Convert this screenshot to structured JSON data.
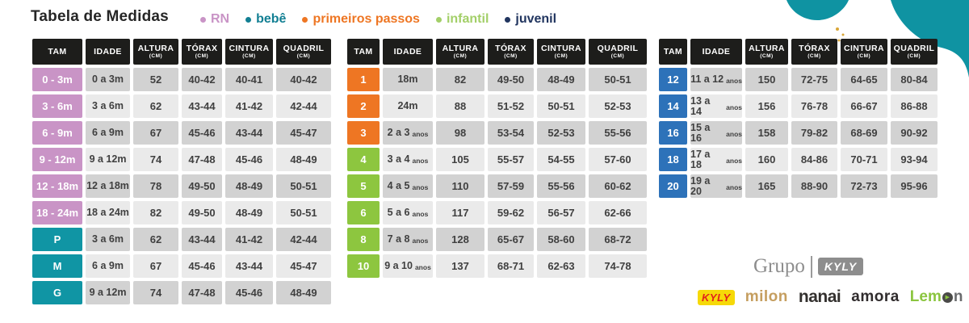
{
  "title": "Tabela de Medidas",
  "legend": [
    {
      "label": "RN",
      "color": "#c994c6"
    },
    {
      "label": "bebê",
      "color": "#127f93"
    },
    {
      "label": "primeiros passos",
      "color": "#ee7623"
    },
    {
      "label": "infantil",
      "color": "#a3cf68"
    },
    {
      "label": "juvenil",
      "color": "#21355f"
    }
  ],
  "columns": [
    {
      "label": "TAM",
      "sub": ""
    },
    {
      "label": "IDADE",
      "sub": ""
    },
    {
      "label": "ALTURA",
      "sub": "(CM)"
    },
    {
      "label": "TÓRAX",
      "sub": "(CM)"
    },
    {
      "label": "CINTURA",
      "sub": "(CM)"
    },
    {
      "label": "QUADRIL",
      "sub": "(CM)"
    }
  ],
  "colors": {
    "rn": "#c994c6",
    "bebe": "#1095a4",
    "pp": "#ee7623",
    "infantil": "#8dc63f",
    "juvenil": "#2d72b9",
    "header": "#1d1d1b",
    "row_dark": "#d2d2d2",
    "row_light": "#eaeaea",
    "blob": "#0f93a2",
    "sparkle": "#d9a637",
    "text": "#404040"
  },
  "tables": [
    {
      "id": "rn-bebe",
      "rows": [
        {
          "tam": "0 - 3m",
          "cat": "rn",
          "idade": "0 a 3m",
          "altura": "52",
          "torax": "40-42",
          "cintura": "40-41",
          "quadril": "40-42"
        },
        {
          "tam": "3 - 6m",
          "cat": "rn",
          "idade": "3 a 6m",
          "altura": "62",
          "torax": "43-44",
          "cintura": "41-42",
          "quadril": "42-44"
        },
        {
          "tam": "6 - 9m",
          "cat": "rn",
          "idade": "6 a 9m",
          "altura": "67",
          "torax": "45-46",
          "cintura": "43-44",
          "quadril": "45-47"
        },
        {
          "tam": "9 - 12m",
          "cat": "rn",
          "idade": "9 a 12m",
          "altura": "74",
          "torax": "47-48",
          "cintura": "45-46",
          "quadril": "48-49"
        },
        {
          "tam": "12 - 18m",
          "cat": "rn",
          "idade": "12 a 18m",
          "altura": "78",
          "torax": "49-50",
          "cintura": "48-49",
          "quadril": "50-51"
        },
        {
          "tam": "18 - 24m",
          "cat": "rn",
          "idade": "18 a 24m",
          "altura": "82",
          "torax": "49-50",
          "cintura": "48-49",
          "quadril": "50-51"
        },
        {
          "tam": "P",
          "cat": "bebe",
          "idade": "3 a 6m",
          "altura": "62",
          "torax": "43-44",
          "cintura": "41-42",
          "quadril": "42-44"
        },
        {
          "tam": "M",
          "cat": "bebe",
          "idade": "6 a 9m",
          "altura": "67",
          "torax": "45-46",
          "cintura": "43-44",
          "quadril": "45-47"
        },
        {
          "tam": "G",
          "cat": "bebe",
          "idade": "9 a 12m",
          "altura": "74",
          "torax": "47-48",
          "cintura": "45-46",
          "quadril": "48-49"
        }
      ]
    },
    {
      "id": "primeiros-passos-infantil",
      "rows": [
        {
          "tam": "1",
          "cat": "pp",
          "idade": "18m",
          "altura": "82",
          "torax": "49-50",
          "cintura": "48-49",
          "quadril": "50-51"
        },
        {
          "tam": "2",
          "cat": "pp",
          "idade": "24m",
          "altura": "88",
          "torax": "51-52",
          "cintura": "50-51",
          "quadril": "52-53"
        },
        {
          "tam": "3",
          "cat": "pp",
          "idade": "2 a 3",
          "idade_sub": "anos",
          "altura": "98",
          "torax": "53-54",
          "cintura": "52-53",
          "quadril": "55-56"
        },
        {
          "tam": "4",
          "cat": "infantil",
          "idade": "3 a 4",
          "idade_sub": "anos",
          "altura": "105",
          "torax": "55-57",
          "cintura": "54-55",
          "quadril": "57-60"
        },
        {
          "tam": "5",
          "cat": "infantil",
          "idade": "4 a 5",
          "idade_sub": "anos",
          "altura": "110",
          "torax": "57-59",
          "cintura": "55-56",
          "quadril": "60-62"
        },
        {
          "tam": "6",
          "cat": "infantil",
          "idade": "5 a 6",
          "idade_sub": "anos",
          "altura": "117",
          "torax": "59-62",
          "cintura": "56-57",
          "quadril": "62-66"
        },
        {
          "tam": "8",
          "cat": "infantil",
          "idade": "7 a 8",
          "idade_sub": "anos",
          "altura": "128",
          "torax": "65-67",
          "cintura": "58-60",
          "quadril": "68-72"
        },
        {
          "tam": "10",
          "cat": "infantil",
          "idade": "9 a 10",
          "idade_sub": "anos",
          "altura": "137",
          "torax": "68-71",
          "cintura": "62-63",
          "quadril": "74-78"
        }
      ]
    },
    {
      "id": "juvenil",
      "rows": [
        {
          "tam": "12",
          "cat": "juvenil",
          "idade": "11 a 12",
          "idade_sub": "anos",
          "altura": "150",
          "torax": "72-75",
          "cintura": "64-65",
          "quadril": "80-84"
        },
        {
          "tam": "14",
          "cat": "juvenil",
          "idade": "13 a 14",
          "idade_sub": "anos",
          "altura": "156",
          "torax": "76-78",
          "cintura": "66-67",
          "quadril": "86-88"
        },
        {
          "tam": "16",
          "cat": "juvenil",
          "idade": "15 a 16",
          "idade_sub": "anos",
          "altura": "158",
          "torax": "79-82",
          "cintura": "68-69",
          "quadril": "90-92"
        },
        {
          "tam": "18",
          "cat": "juvenil",
          "idade": "17 a 18",
          "idade_sub": "anos",
          "altura": "160",
          "torax": "84-86",
          "cintura": "70-71",
          "quadril": "93-94"
        },
        {
          "tam": "20",
          "cat": "juvenil",
          "idade": "19 a 20",
          "idade_sub": "anos",
          "altura": "165",
          "torax": "88-90",
          "cintura": "72-73",
          "quadril": "95-96"
        }
      ]
    }
  ],
  "footer": {
    "grupo": {
      "label": "Grupo",
      "brand": "KYLY"
    },
    "brands": [
      {
        "text": "KYLY"
      },
      {
        "text": "milon"
      },
      {
        "text": "nanai"
      },
      {
        "text": "amora"
      },
      {
        "text": "Lemon",
        "seg1": "Lem",
        "seg2": "o",
        "seg3": "n"
      }
    ]
  }
}
